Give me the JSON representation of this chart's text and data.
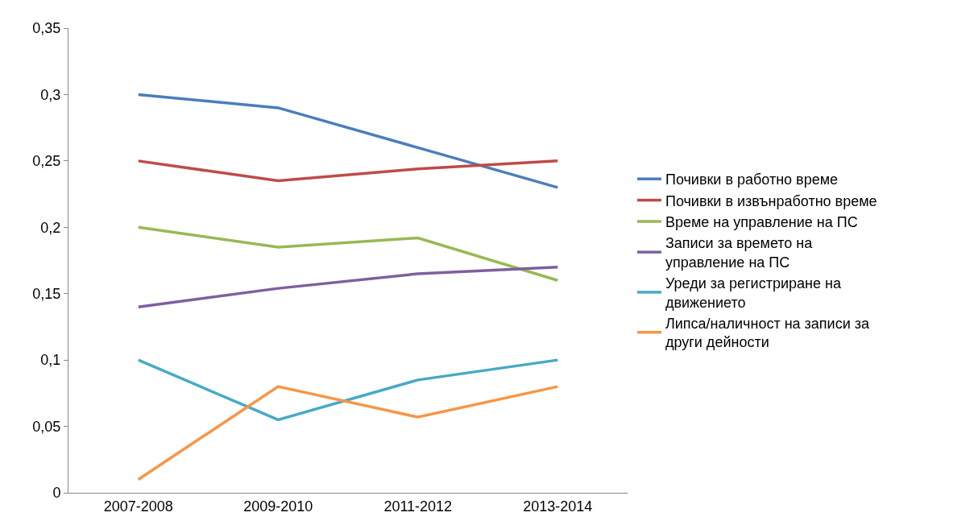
{
  "chart_data": {
    "type": "line",
    "categories": [
      "2007-2008",
      "2009-2010",
      "2011-2012",
      "2013-2014"
    ],
    "series": [
      {
        "name": "Почивки в работно време",
        "color": "#4a7ebb",
        "values": [
          0.3,
          0.29,
          0.26,
          0.23
        ]
      },
      {
        "name": "Почивки в извънработно време",
        "color": "#be4b48",
        "values": [
          0.25,
          0.235,
          0.244,
          0.25
        ]
      },
      {
        "name": "Време на управление на ПС",
        "color": "#98b954",
        "values": [
          0.2,
          0.185,
          0.192,
          0.16
        ]
      },
      {
        "name": "Записи за времето на управление на ПС",
        "color": "#7d60a0",
        "values": [
          0.14,
          0.154,
          0.165,
          0.17
        ]
      },
      {
        "name": "Уреди за регистриране на движението",
        "color": "#46aac5",
        "values": [
          0.1,
          0.055,
          0.085,
          0.1
        ]
      },
      {
        "name": "Липса/наличност на записи за други дейности",
        "color": "#f79646",
        "values": [
          0.01,
          0.08,
          0.057,
          0.08
        ]
      }
    ],
    "ylim": [
      0,
      0.35
    ],
    "yticks": [
      {
        "value": 0,
        "label": "0"
      },
      {
        "value": 0.05,
        "label": "0,05"
      },
      {
        "value": 0.1,
        "label": "0,1"
      },
      {
        "value": 0.15,
        "label": "0,15"
      },
      {
        "value": 0.2,
        "label": "0,2"
      },
      {
        "value": 0.25,
        "label": "0,25"
      },
      {
        "value": 0.3,
        "label": "0,3"
      },
      {
        "value": 0.35,
        "label": "0,35"
      }
    ],
    "grid": false,
    "legend": "right",
    "marker": "none",
    "line_style": "solid"
  }
}
